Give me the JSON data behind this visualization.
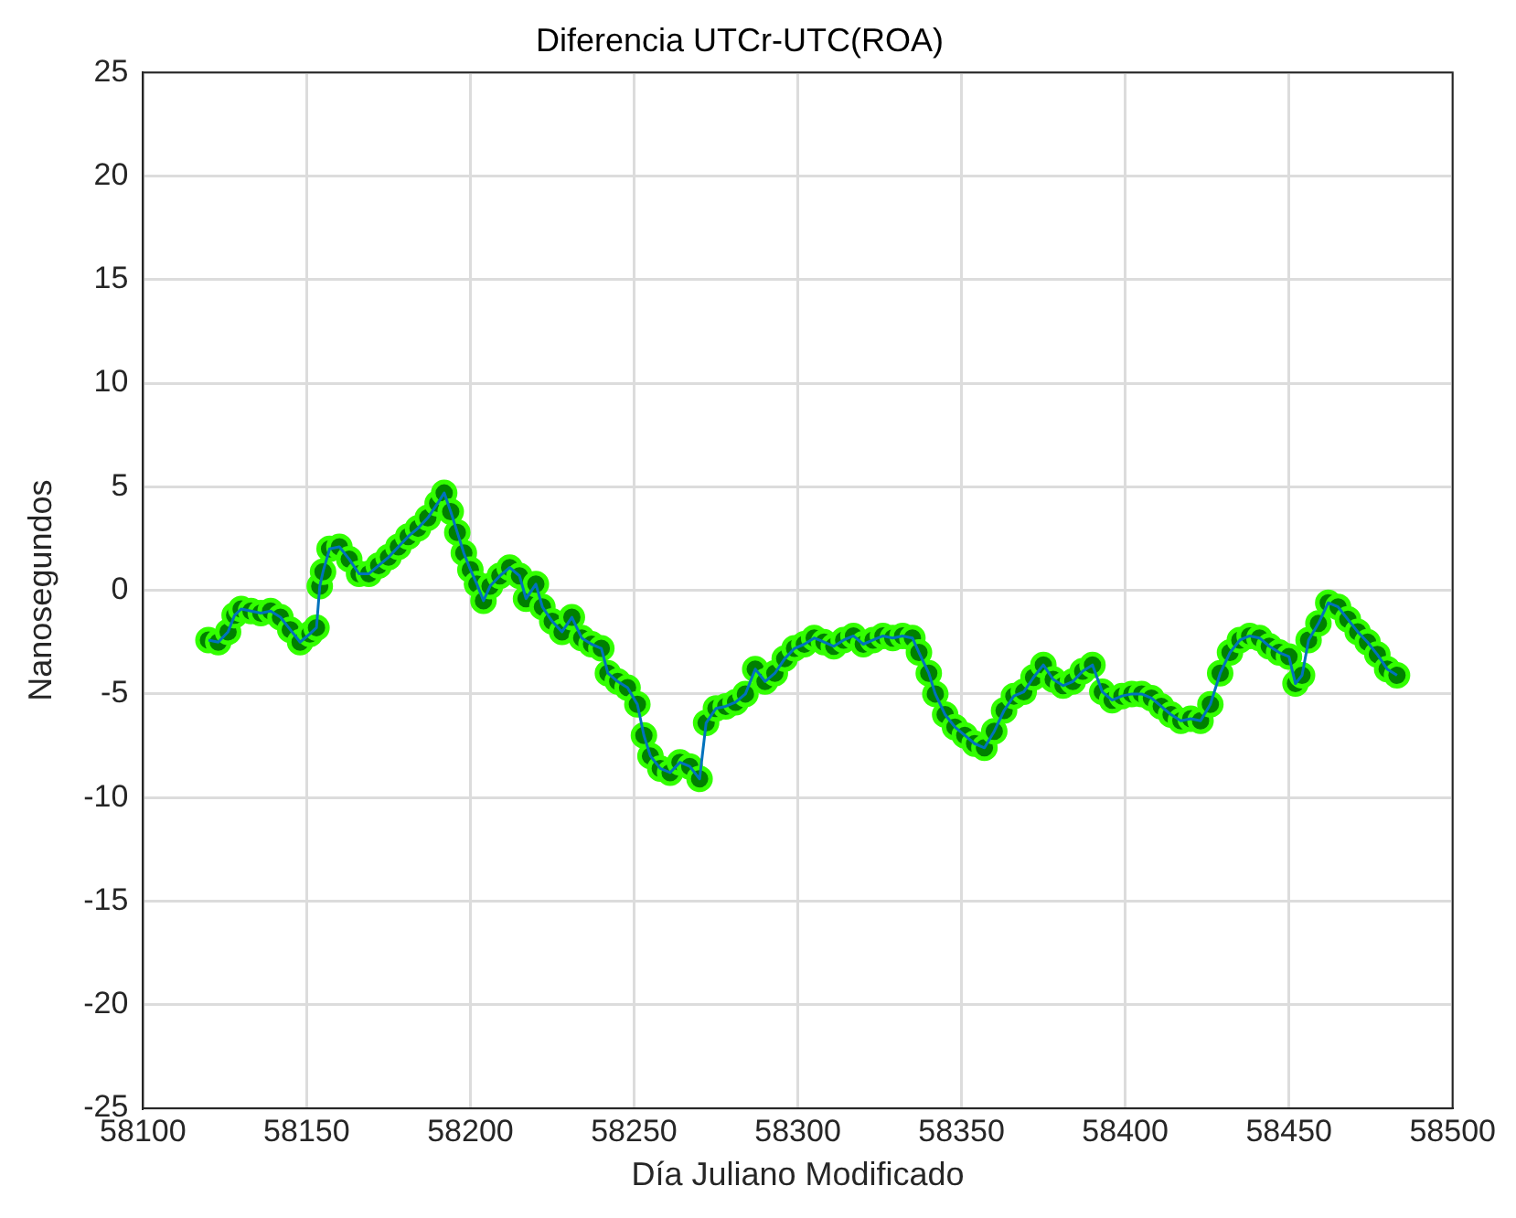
{
  "chart_data": {
    "type": "line",
    "title": "Diferencia UTCr-UTC(ROA)",
    "xlabel": "Día Juliano Modificado",
    "ylabel": "Nanosegundos",
    "x": [
      58120,
      58123,
      58126,
      58128,
      58130,
      58133,
      58136,
      58139,
      58142,
      58145,
      58148,
      58151,
      58153,
      58154,
      58155,
      58157,
      58160,
      58163,
      58166,
      58169,
      58172,
      58175,
      58178,
      58181,
      58184,
      58187,
      58190,
      58192,
      58194,
      58196,
      58198,
      58200,
      58202,
      58204,
      58206,
      58209,
      58212,
      58215,
      58217,
      58220,
      58222,
      58225,
      58228,
      58231,
      58234,
      58237,
      58240,
      58242,
      58245,
      58248,
      58251,
      58253,
      58255,
      58258,
      58261,
      58264,
      58267,
      58270,
      58272,
      58275,
      58278,
      58281,
      58284,
      58287,
      58290,
      58293,
      58296,
      58299,
      58302,
      58305,
      58308,
      58311,
      58314,
      58317,
      58320,
      58323,
      58326,
      58329,
      58332,
      58335,
      58337,
      58340,
      58342,
      58345,
      58348,
      58351,
      58354,
      58357,
      58360,
      58363,
      58366,
      58369,
      58372,
      58375,
      58378,
      58381,
      58384,
      58387,
      58390,
      58393,
      58396,
      58399,
      58402,
      58405,
      58408,
      58411,
      58414,
      58417,
      58420,
      58423,
      58426,
      58429,
      58432,
      58435,
      58438,
      58441,
      58444,
      58447,
      58450,
      58452,
      58454,
      58456,
      58459,
      58462,
      58465,
      58468,
      58471,
      58474,
      58477,
      58480,
      58483
    ],
    "series": [
      {
        "type": "scatter",
        "color": "#008000",
        "values": [
          -2.4,
          -2.5,
          -2.0,
          -1.2,
          -0.9,
          -1.0,
          -1.1,
          -1.0,
          -1.3,
          -1.9,
          -2.5,
          -2.1,
          -1.8,
          0.2,
          0.9,
          2.0,
          2.1,
          1.5,
          0.8,
          0.8,
          1.2,
          1.6,
          2.1,
          2.6,
          3.0,
          3.5,
          4.2,
          4.7,
          3.8,
          2.8,
          1.8,
          1.0,
          0.3,
          -0.5,
          0.2,
          0.7,
          1.1,
          0.7,
          -0.4,
          0.3,
          -0.8,
          -1.5,
          -2.0,
          -1.3,
          -2.3,
          -2.6,
          -2.8,
          -4.0,
          -4.4,
          -4.7,
          -5.5,
          -7.0,
          -8.0,
          -8.6,
          -8.8,
          -8.3,
          -8.5,
          -9.1,
          -6.4,
          -5.7,
          -5.6,
          -5.4,
          -5.0,
          -3.8,
          -4.4,
          -4.0,
          -3.3,
          -2.8,
          -2.6,
          -2.3,
          -2.5,
          -2.7,
          -2.4,
          -2.2,
          -2.6,
          -2.4,
          -2.2,
          -2.3,
          -2.2,
          -2.3,
          -3.0,
          -4.0,
          -5.0,
          -6.0,
          -6.6,
          -7.0,
          -7.4,
          -7.6,
          -6.8,
          -5.8,
          -5.1,
          -4.9,
          -4.2,
          -3.6,
          -4.3,
          -4.6,
          -4.4,
          -3.9,
          -3.6,
          -4.9,
          -5.3,
          -5.1,
          -5.0,
          -5.0,
          -5.2,
          -5.6,
          -6.0,
          -6.3,
          -6.2,
          -6.3,
          -5.5,
          -4.0,
          -3.0,
          -2.4,
          -2.2,
          -2.3,
          -2.7,
          -3.0,
          -3.2,
          -4.5,
          -4.1,
          -2.4,
          -1.6,
          -0.6,
          -0.8,
          -1.4,
          -2.0,
          -2.5,
          -3.1,
          -3.8,
          -4.1
        ]
      },
      {
        "color": "#0072bd",
        "marker": "none",
        "values": [
          -2.4,
          -2.5,
          -2.0,
          -1.2,
          -0.9,
          -1.0,
          -1.1,
          -1.0,
          -1.3,
          -1.9,
          -2.5,
          -2.1,
          -1.8,
          0.2,
          0.9,
          2.0,
          2.1,
          1.5,
          0.8,
          0.8,
          1.2,
          1.6,
          2.1,
          2.6,
          3.0,
          3.5,
          4.2,
          4.7,
          3.8,
          2.8,
          1.8,
          1.0,
          0.3,
          -0.5,
          0.2,
          0.7,
          1.1,
          0.7,
          -0.4,
          0.3,
          -0.8,
          -1.5,
          -2.0,
          -1.3,
          -2.3,
          -2.6,
          -2.8,
          -4.0,
          -4.4,
          -4.7,
          -5.5,
          -7.0,
          -8.0,
          -8.6,
          -8.8,
          -8.3,
          -8.5,
          -9.1,
          -6.4,
          -5.7,
          -5.6,
          -5.4,
          -5.0,
          -3.8,
          -4.4,
          -4.0,
          -3.3,
          -2.8,
          -2.6,
          -2.3,
          -2.5,
          -2.7,
          -2.4,
          -2.2,
          -2.6,
          -2.4,
          -2.2,
          -2.3,
          -2.2,
          -2.3,
          -3.0,
          -4.0,
          -5.0,
          -6.0,
          -6.6,
          -7.0,
          -7.4,
          -7.6,
          -6.8,
          -5.8,
          -5.1,
          -4.9,
          -4.2,
          -3.6,
          -4.3,
          -4.6,
          -4.4,
          -3.9,
          -3.6,
          -4.9,
          -5.3,
          -5.1,
          -5.0,
          -5.0,
          -5.2,
          -5.6,
          -6.0,
          -6.3,
          -6.2,
          -6.3,
          -5.5,
          -4.0,
          -3.0,
          -2.4,
          -2.2,
          -2.3,
          -2.7,
          -3.0,
          -3.2,
          -4.5,
          -4.1,
          -2.4,
          -1.6,
          -0.6,
          -0.8,
          -1.4,
          -2.0,
          -2.5,
          -3.1,
          -3.8,
          -4.1
        ]
      }
    ],
    "xlim": [
      58100,
      58500
    ],
    "xticks": [
      58100,
      58150,
      58200,
      58250,
      58300,
      58350,
      58400,
      58450,
      58500
    ],
    "ylim": [
      -25,
      25
    ],
    "yticks": [
      -25,
      -20,
      -15,
      -10,
      -5,
      0,
      5,
      10,
      15,
      20,
      25
    ],
    "grid": true,
    "legend": false,
    "marker": "circle",
    "line_style": "solid"
  }
}
